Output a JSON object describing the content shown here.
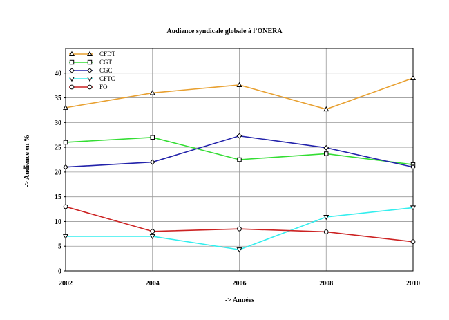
{
  "chart_data": {
    "type": "line",
    "title": "Audience syndicale globale à l’ONERA",
    "xlabel": "-> Années",
    "ylabel": "-> Audience en %",
    "x": [
      2002,
      2004,
      2006,
      2008,
      2010
    ],
    "xlim": [
      2002,
      2010
    ],
    "ylim": [
      0,
      45
    ],
    "yticks": [
      0,
      5,
      10,
      15,
      20,
      25,
      30,
      35,
      40
    ],
    "grid": true,
    "legend_position": "top-left",
    "series": [
      {
        "name": "CFDT",
        "marker": "triangle-up",
        "color": "#e8a030",
        "values": [
          33.0,
          36.0,
          37.6,
          32.7,
          39.0
        ]
      },
      {
        "name": "CGT",
        "marker": "square",
        "color": "#33dd33",
        "values": [
          26.0,
          27.0,
          22.5,
          23.7,
          21.5
        ]
      },
      {
        "name": "CGC",
        "marker": "diamond",
        "color": "#2222aa",
        "values": [
          21.0,
          22.0,
          27.3,
          24.9,
          21.0
        ]
      },
      {
        "name": "CFTC",
        "marker": "triangle-down",
        "color": "#33eeee",
        "values": [
          7.0,
          7.0,
          4.3,
          10.9,
          12.8
        ]
      },
      {
        "name": "FO",
        "marker": "circle",
        "color": "#cc2222",
        "values": [
          13.0,
          8.0,
          8.5,
          7.9,
          5.9
        ]
      }
    ]
  }
}
